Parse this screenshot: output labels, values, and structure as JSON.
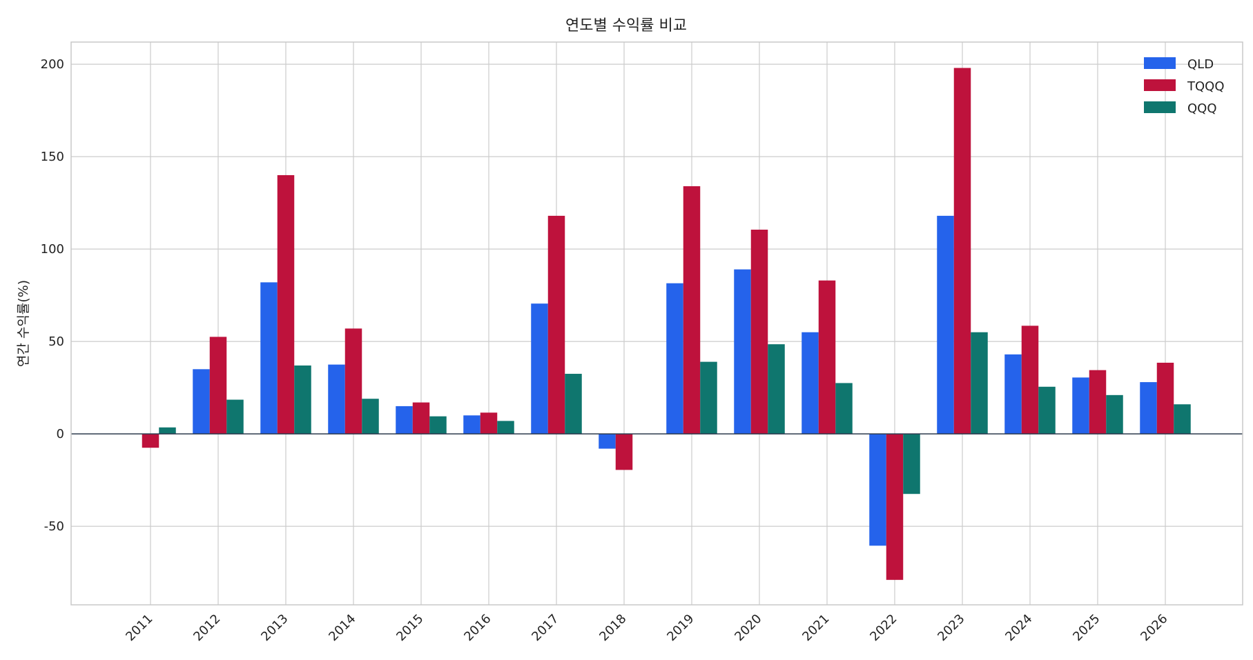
{
  "chart_data": {
    "type": "bar",
    "title": "연도별 수익률 비교",
    "xlabel": "",
    "ylabel": "연간 수익률(%)",
    "categories": [
      "2011",
      "2012",
      "2013",
      "2014",
      "2015",
      "2016",
      "2017",
      "2018",
      "2019",
      "2020",
      "2021",
      "2022",
      "2023",
      "2024",
      "2025",
      "2026"
    ],
    "series": [
      {
        "name": "QLD",
        "color": "#2563eb",
        "values": [
          null,
          35,
          82,
          37.5,
          15,
          10,
          70.5,
          -8,
          81.5,
          89,
          55,
          -60.5,
          118,
          43,
          30.5,
          28
        ]
      },
      {
        "name": "TQQQ",
        "color": "#be123c",
        "values": [
          -7.5,
          52.5,
          140,
          57,
          17,
          11.5,
          118,
          -19.5,
          134,
          110.5,
          83,
          -79,
          198,
          58.5,
          34.5,
          38.5
        ]
      },
      {
        "name": "QQQ",
        "color": "#0f766e",
        "values": [
          3.5,
          18.5,
          37,
          19,
          9.5,
          7,
          32.5,
          null,
          39,
          48.5,
          27.5,
          -32.5,
          55,
          25.5,
          21,
          16
        ]
      }
    ],
    "yticks": [
      -50,
      0,
      50,
      100,
      150,
      200
    ],
    "ylim": [
      -92.5,
      212
    ],
    "grid": true,
    "legend": "top-right"
  }
}
